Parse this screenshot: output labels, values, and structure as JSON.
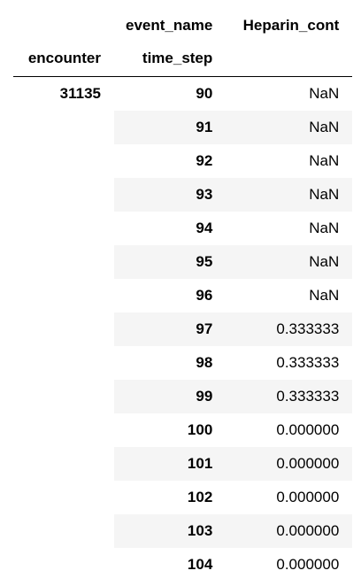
{
  "header": {
    "columns_level_name": "event_name",
    "value_column": "Heparin_cont",
    "index_names": [
      "encounter",
      "time_step"
    ]
  },
  "rows": [
    {
      "encounter": "31135",
      "time_step": "90",
      "value": "NaN"
    },
    {
      "encounter": "",
      "time_step": "91",
      "value": "NaN"
    },
    {
      "encounter": "",
      "time_step": "92",
      "value": "NaN"
    },
    {
      "encounter": "",
      "time_step": "93",
      "value": "NaN"
    },
    {
      "encounter": "",
      "time_step": "94",
      "value": "NaN"
    },
    {
      "encounter": "",
      "time_step": "95",
      "value": "NaN"
    },
    {
      "encounter": "",
      "time_step": "96",
      "value": "NaN"
    },
    {
      "encounter": "",
      "time_step": "97",
      "value": "0.333333"
    },
    {
      "encounter": "",
      "time_step": "98",
      "value": "0.333333"
    },
    {
      "encounter": "",
      "time_step": "99",
      "value": "0.333333"
    },
    {
      "encounter": "",
      "time_step": "100",
      "value": "0.000000"
    },
    {
      "encounter": "",
      "time_step": "101",
      "value": "0.000000"
    },
    {
      "encounter": "",
      "time_step": "102",
      "value": "0.000000"
    },
    {
      "encounter": "",
      "time_step": "103",
      "value": "0.000000"
    },
    {
      "encounter": "",
      "time_step": "104",
      "value": "0.000000"
    }
  ]
}
